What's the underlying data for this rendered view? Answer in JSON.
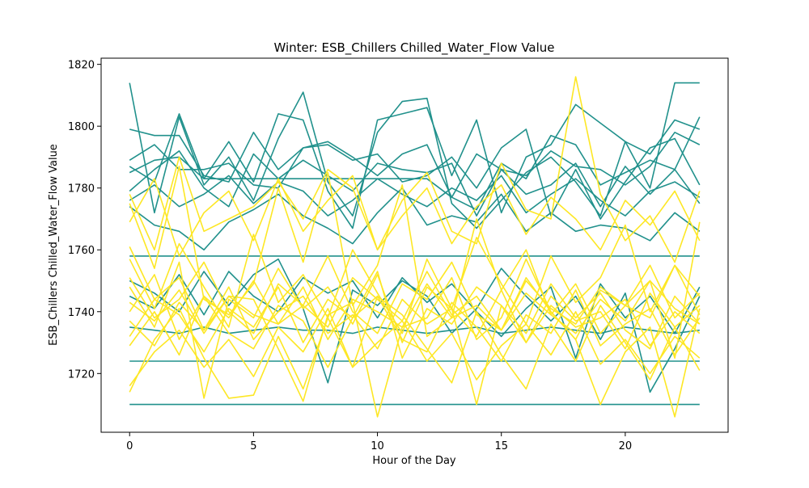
{
  "chart_data": {
    "type": "line",
    "title": "Winter: ESB_Chillers Chilled_Water_Flow Value",
    "xlabel": "Hour of the Day",
    "ylabel": "ESB_Chillers Chilled_Water_Flow Value",
    "xlim": [
      -1.15,
      24.15
    ],
    "ylim": [
      1701,
      1822
    ],
    "xticks": [
      0,
      5,
      10,
      15,
      20
    ],
    "yticks": [
      1720,
      1740,
      1760,
      1780,
      1800,
      1820
    ],
    "grid": false,
    "legend": "none",
    "colors": {
      "teal": "#21918c",
      "yellow": "#fde725"
    },
    "x": [
      0,
      1,
      2,
      3,
      4,
      5,
      6,
      7,
      8,
      9,
      10,
      11,
      12,
      13,
      14,
      15,
      16,
      17,
      18,
      19,
      20,
      21,
      22,
      23
    ],
    "series": [
      {
        "color": "teal",
        "values": [
          1814,
          1772,
          1803,
          1781,
          1790,
          1776,
          1796,
          1811,
          1782,
          1771,
          1798,
          1808,
          1809,
          1775,
          1767,
          1776,
          1785,
          1790,
          1782,
          1771,
          1795,
          1780,
          1814,
          1814
        ]
      },
      {
        "color": "teal",
        "values": [
          1799,
          1797,
          1797,
          1784,
          1782,
          1798,
          1786,
          1793,
          1795,
          1790,
          1784,
          1791,
          1794,
          1777,
          1773,
          1788,
          1783,
          1797,
          1794,
          1781,
          1785,
          1789,
          1786,
          1803
        ]
      },
      {
        "color": "teal",
        "values": [
          1787,
          1782,
          1804,
          1783,
          1795,
          1782,
          1804,
          1802,
          1779,
          1767,
          1802,
          1804,
          1806,
          1784,
          1802,
          1772,
          1790,
          1794,
          1807,
          1801,
          1795,
          1791,
          1802,
          1799
        ]
      },
      {
        "color": "teal",
        "values": [
          1789,
          1794,
          1786,
          1786,
          1788,
          1781,
          1780,
          1793,
          1794,
          1789,
          1791,
          1782,
          1784,
          1790,
          1780,
          1793,
          1799,
          1771,
          1786,
          1770,
          1782,
          1793,
          1796,
          1781
        ]
      },
      {
        "color": "teal",
        "values": [
          1785,
          1789,
          1790,
          1783,
          1783,
          1783,
          1783,
          1783,
          1783,
          1783,
          1783,
          1783,
          1783,
          1777,
          1791,
          1786,
          1784,
          1792,
          1787,
          1786,
          1781,
          1787,
          1798,
          1794
        ]
      },
      {
        "color": "teal",
        "values": [
          1779,
          1786,
          1792,
          1780,
          1774,
          1791,
          1783,
          1789,
          1784,
          1779,
          1788,
          1786,
          1785,
          1788,
          1771,
          1786,
          1778,
          1781,
          1788,
          1774,
          1787,
          1778,
          1786,
          1775
        ]
      },
      {
        "color": "teal",
        "values": [
          1758,
          1758,
          1758,
          1758,
          1758,
          1758,
          1758,
          1758,
          1758,
          1758,
          1758,
          1758,
          1758,
          1758,
          1758,
          1758,
          1758,
          1758,
          1758,
          1758,
          1758,
          1758,
          1758,
          1758
        ]
      },
      {
        "color": "teal",
        "values": [
          1724,
          1724,
          1724,
          1724,
          1724,
          1724,
          1724,
          1724,
          1724,
          1724,
          1724,
          1724,
          1724,
          1724,
          1724,
          1724,
          1724,
          1724,
          1724,
          1724,
          1724,
          1724,
          1724,
          1724
        ]
      },
      {
        "color": "teal",
        "values": [
          1710,
          1710,
          1710,
          1710,
          1710,
          1710,
          1710,
          1710,
          1710,
          1710,
          1710,
          1710,
          1710,
          1710,
          1710,
          1710,
          1710,
          1710,
          1710,
          1710,
          1710,
          1710,
          1710,
          1710
        ]
      },
      {
        "color": "teal",
        "values": [
          1774,
          1768,
          1766,
          1760,
          1769,
          1773,
          1778,
          1771,
          1767,
          1762,
          1772,
          1780,
          1768,
          1771,
          1769,
          1778,
          1766,
          1772,
          1766,
          1768,
          1767,
          1763,
          1772,
          1766
        ]
      },
      {
        "color": "teal",
        "values": [
          1750,
          1746,
          1740,
          1753,
          1742,
          1752,
          1757,
          1741,
          1717,
          1747,
          1742,
          1750,
          1745,
          1733,
          1741,
          1754,
          1745,
          1737,
          1745,
          1731,
          1746,
          1714,
          1728,
          1745
        ]
      },
      {
        "color": "teal",
        "values": [
          1745,
          1741,
          1752,
          1739,
          1753,
          1745,
          1740,
          1751,
          1746,
          1750,
          1738,
          1751,
          1743,
          1749,
          1740,
          1732,
          1741,
          1748,
          1725,
          1749,
          1738,
          1745,
          1733,
          1748
        ]
      },
      {
        "color": "teal",
        "values": [
          1735,
          1734,
          1733,
          1735,
          1733,
          1734,
          1735,
          1734,
          1734,
          1733,
          1735,
          1734,
          1733,
          1734,
          1735,
          1733,
          1734,
          1735,
          1734,
          1733,
          1735,
          1734,
          1733,
          1734
        ]
      },
      {
        "color": "teal",
        "values": [
          1776,
          1781,
          1774,
          1778,
          1784,
          1775,
          1782,
          1779,
          1771,
          1776,
          1783,
          1778,
          1774,
          1780,
          1776,
          1784,
          1772,
          1778,
          1783,
          1776,
          1771,
          1779,
          1782,
          1777
        ]
      },
      {
        "color": "yellow",
        "values": [
          1778,
          1760,
          1790,
          1766,
          1770,
          1774,
          1782,
          1770,
          1786,
          1780,
          1760,
          1776,
          1785,
          1766,
          1762,
          1788,
          1773,
          1770,
          1816,
          1778,
          1763,
          1771,
          1756,
          1779
        ]
      },
      {
        "color": "yellow",
        "values": [
          1761,
          1744,
          1751,
          1734,
          1745,
          1744,
          1728,
          1711,
          1739,
          1743,
          1706,
          1735,
          1738,
          1751,
          1731,
          1738,
          1757,
          1740,
          1731,
          1710,
          1727,
          1735,
          1706,
          1741
        ]
      },
      {
        "color": "yellow",
        "values": [
          1775,
          1754,
          1787,
          1744,
          1739,
          1749,
          1780,
          1756,
          1785,
          1742,
          1755,
          1781,
          1732,
          1738,
          1770,
          1747,
          1760,
          1739,
          1749,
          1733,
          1742,
          1750,
          1725,
          1769
        ]
      },
      {
        "color": "yellow",
        "values": [
          1748,
          1735,
          1756,
          1712,
          1744,
          1738,
          1754,
          1741,
          1748,
          1736,
          1752,
          1730,
          1748,
          1741,
          1710,
          1742,
          1733,
          1749,
          1738,
          1746,
          1734,
          1728,
          1745,
          1736
        ]
      },
      {
        "color": "yellow",
        "values": [
          1740,
          1752,
          1731,
          1745,
          1738,
          1750,
          1736,
          1742,
          1758,
          1740,
          1733,
          1749,
          1744,
          1756,
          1739,
          1734,
          1751,
          1740,
          1731,
          1747,
          1742,
          1738,
          1755,
          1739
        ]
      },
      {
        "color": "yellow",
        "values": [
          1732,
          1744,
          1739,
          1727,
          1741,
          1735,
          1748,
          1730,
          1744,
          1738,
          1753,
          1725,
          1741,
          1736,
          1748,
          1742,
          1730,
          1745,
          1737,
          1740,
          1728,
          1746,
          1735,
          1742
        ]
      },
      {
        "color": "yellow",
        "values": [
          1716,
          1727,
          1734,
          1722,
          1731,
          1719,
          1735,
          1727,
          1741,
          1722,
          1730,
          1737,
          1724,
          1733,
          1718,
          1729,
          1736,
          1726,
          1740,
          1723,
          1731,
          1720,
          1732,
          1725
        ]
      },
      {
        "color": "yellow",
        "values": [
          1757,
          1741,
          1762,
          1748,
          1735,
          1765,
          1743,
          1752,
          1738,
          1760,
          1746,
          1733,
          1757,
          1741,
          1764,
          1749,
          1736,
          1758,
          1743,
          1751,
          1768,
          1740,
          1755,
          1745
        ]
      },
      {
        "color": "yellow",
        "values": [
          1743,
          1737,
          1747,
          1733,
          1745,
          1739,
          1736,
          1748,
          1731,
          1744,
          1740,
          1735,
          1749,
          1738,
          1742,
          1734,
          1746,
          1739,
          1733,
          1744,
          1737,
          1750,
          1741,
          1736
        ]
      },
      {
        "color": "yellow",
        "values": [
          1769,
          1783,
          1758,
          1772,
          1779,
          1763,
          1783,
          1766,
          1776,
          1784,
          1760,
          1771,
          1780,
          1762,
          1774,
          1781,
          1765,
          1777,
          1770,
          1760,
          1776,
          1768,
          1779,
          1763
        ]
      },
      {
        "color": "yellow",
        "values": [
          1729,
          1740,
          1726,
          1745,
          1733,
          1728,
          1742,
          1737,
          1722,
          1738,
          1745,
          1731,
          1727,
          1743,
          1735,
          1724,
          1739,
          1733,
          1747,
          1729,
          1736,
          1741,
          1726,
          1738
        ]
      },
      {
        "color": "yellow",
        "values": [
          1737,
          1729,
          1743,
          1734,
          1748,
          1731,
          1740,
          1745,
          1733,
          1739,
          1728,
          1744,
          1736,
          1741,
          1732,
          1747,
          1730,
          1742,
          1735,
          1738,
          1744,
          1729,
          1740,
          1733
        ]
      },
      {
        "color": "yellow",
        "values": [
          1714,
          1731,
          1741,
          1725,
          1712,
          1713,
          1732,
          1715,
          1738,
          1722,
          1745,
          1739,
          1728,
          1717,
          1740,
          1726,
          1715,
          1736,
          1724,
          1742,
          1730,
          1718,
          1735,
          1721
        ]
      },
      {
        "color": "yellow",
        "values": [
          1751,
          1738,
          1744,
          1756,
          1740,
          1733,
          1749,
          1742,
          1735,
          1751,
          1744,
          1737,
          1753,
          1739,
          1745,
          1734,
          1750,
          1741,
          1736,
          1748,
          1742,
          1755,
          1738,
          1746
        ]
      }
    ]
  }
}
